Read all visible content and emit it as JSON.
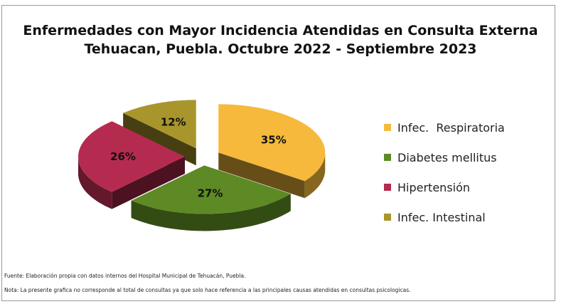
{
  "chart_data": {
    "type": "pie",
    "title": "Enfermedades con Mayor Incidencia Atendidas en Consulta Externa",
    "subtitle": "Tehuacan, Puebla. Octubre 2022 - Septiembre 2023",
    "categories": [
      "Infec.  Respiratoria",
      "Diabetes mellitus",
      "Hipertensión",
      "Infec. Intestinal"
    ],
    "values": [
      35,
      27,
      26,
      12
    ],
    "data_labels": [
      "35%",
      "27%",
      "26%",
      "12%"
    ],
    "colors": [
      "#f6b93b",
      "#5d8a24",
      "#b52b4f",
      "#a8962c"
    ],
    "legend_placement": "right"
  },
  "notes": {
    "source": "Fuente: Elaboración propia con datos internos del Hospital Municipal de Tehuacán, Puebla.",
    "note": "Nota: La presente grafica no corresponde al total de consultas ya que solo hace referencia a las principales causas atendidas en consultas psicologicas."
  }
}
